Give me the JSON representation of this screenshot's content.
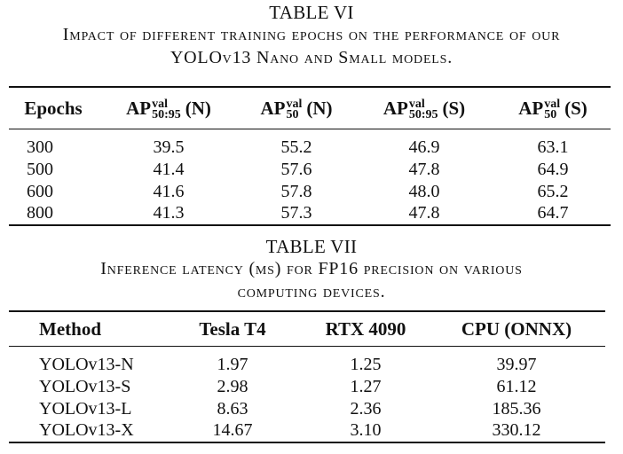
{
  "table6": {
    "label": "TABLE VI",
    "caption_line1": "Impact of different training epochs on the performance of our",
    "caption_line2": "YOLOv13 Nano and Small models.",
    "headers": {
      "epochs": "Epochs",
      "ap": "AP",
      "val": "val",
      "sub_5095": "50:95",
      "sub_50": "50",
      "n": "(N)",
      "s": "(S)"
    },
    "rows": [
      [
        "300",
        "39.5",
        "55.2",
        "46.9",
        "63.1"
      ],
      [
        "500",
        "41.4",
        "57.6",
        "47.8",
        "64.9"
      ],
      [
        "600",
        "41.6",
        "57.8",
        "48.0",
        "65.2"
      ],
      [
        "800",
        "41.3",
        "57.3",
        "47.8",
        "64.7"
      ]
    ]
  },
  "table7": {
    "label": "TABLE VII",
    "caption_line1": "Inference latency (ms) for FP16 precision on various",
    "caption_line2": "computing devices.",
    "headers": [
      "Method",
      "Tesla T4",
      "RTX 4090",
      "CPU (ONNX)"
    ],
    "rows": [
      [
        "YOLOv13-N",
        "1.97",
        "1.25",
        "39.97"
      ],
      [
        "YOLOv13-S",
        "2.98",
        "1.27",
        "61.12"
      ],
      [
        "YOLOv13-L",
        "8.63",
        "2.36",
        "185.36"
      ],
      [
        "YOLOv13-X",
        "14.67",
        "3.10",
        "330.12"
      ]
    ]
  }
}
